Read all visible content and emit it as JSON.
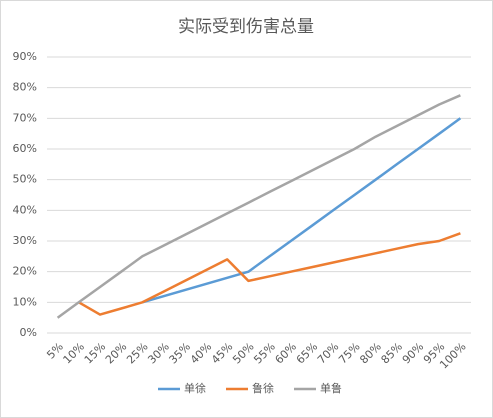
{
  "chart_data": {
    "type": "line",
    "title": "实际受到伤害总量",
    "categories": [
      "5%",
      "10%",
      "15%",
      "20%",
      "25%",
      "30%",
      "35%",
      "40%",
      "45%",
      "50%",
      "55%",
      "60%",
      "65%",
      "70%",
      "75%",
      "80%",
      "85%",
      "90%",
      "95%",
      "100%"
    ],
    "series": [
      {
        "name": "单徐",
        "color": "#5b9bd5",
        "values": [
          null,
          null,
          null,
          null,
          10,
          12,
          14,
          16,
          18,
          20,
          25,
          30,
          35,
          40,
          45,
          50,
          55,
          60,
          65,
          70
        ]
      },
      {
        "name": "鲁徐",
        "color": "#ed7d31",
        "values": [
          null,
          10,
          6,
          8,
          10,
          13.5,
          17,
          20.5,
          24,
          17,
          18.5,
          20,
          21.5,
          23,
          24.5,
          26,
          27.5,
          29,
          30,
          32.5
        ]
      },
      {
        "name": "单鲁",
        "color": "#a5a5a5",
        "values": [
          5,
          10,
          15,
          20,
          25,
          28.5,
          32,
          35.5,
          39,
          42.5,
          46,
          49.5,
          53,
          56.5,
          60,
          64,
          67.5,
          71,
          74.5,
          77.5
        ]
      }
    ],
    "ylim": [
      0,
      90
    ],
    "yticks": [
      {
        "value": 0,
        "label": "0%"
      },
      {
        "value": 10,
        "label": "10%"
      },
      {
        "value": 20,
        "label": "20%"
      },
      {
        "value": 30,
        "label": "30%"
      },
      {
        "value": 40,
        "label": "40%"
      },
      {
        "value": 50,
        "label": "50%"
      },
      {
        "value": 60,
        "label": "60%"
      },
      {
        "value": 70,
        "label": "70%"
      },
      {
        "value": 80,
        "label": "80%"
      },
      {
        "value": 90,
        "label": "90%"
      }
    ],
    "grid": true,
    "legend": "bottom"
  }
}
